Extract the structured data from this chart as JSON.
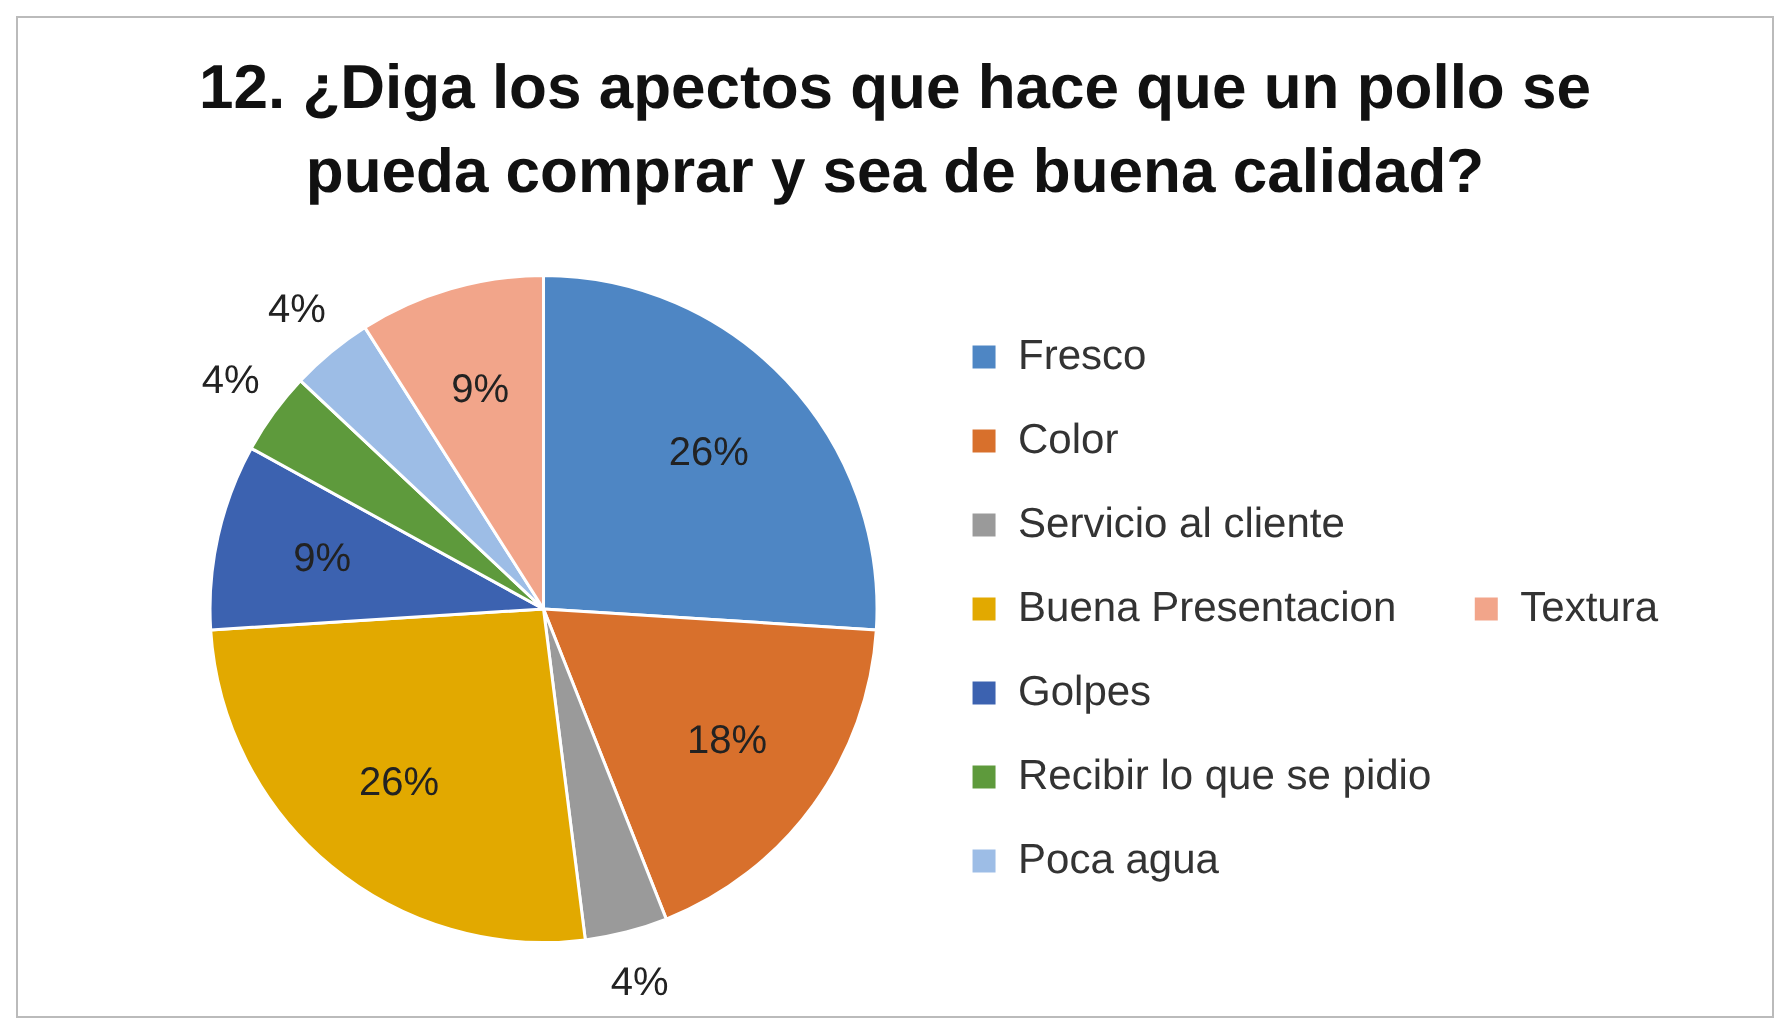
{
  "chart_data": {
    "type": "pie",
    "title": "12. ¿Diga los apectos que hace que un pollo se pueda comprar y sea de buena calidad?",
    "categories": [
      "Fresco",
      "Color",
      "Servicio al cliente",
      "Buena Presentacion",
      "Golpes",
      "Recibir lo que se pidio",
      "Poca agua",
      "Textura"
    ],
    "values": [
      26,
      18,
      4,
      26,
      9,
      4,
      4,
      9
    ],
    "colors": [
      "#4e86c4",
      "#d8702c",
      "#9a9a9a",
      "#e2a900",
      "#3c62b0",
      "#5e9a3c",
      "#9dbde6",
      "#f2a58a"
    ],
    "value_labels": [
      "26%",
      "18%",
      "4%",
      "26%",
      "9%",
      "4%",
      "4%",
      "9%"
    ],
    "legend": "right"
  }
}
